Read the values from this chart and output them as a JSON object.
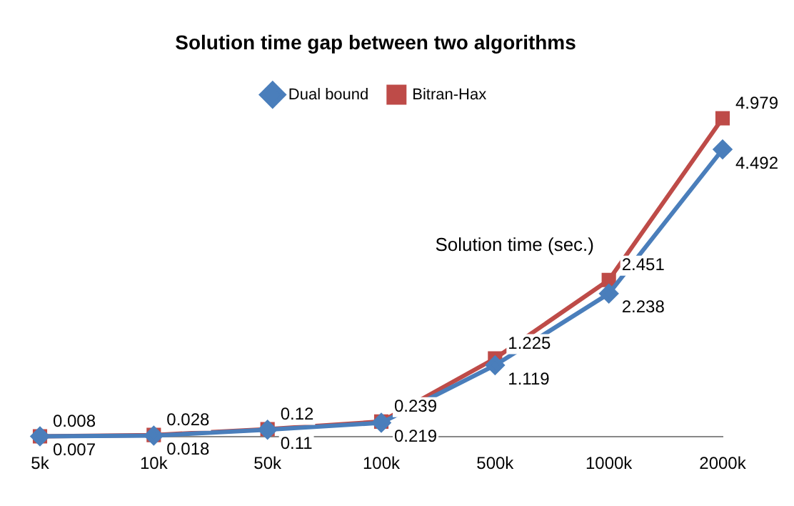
{
  "chart_data": {
    "type": "line",
    "title": "Solution time gap between two algorithms",
    "categories": [
      "5k",
      "10k",
      "50k",
      "100k",
      "500k",
      "1000k",
      "2000k"
    ],
    "series": [
      {
        "name": "Dual bound",
        "color": "#4a7ebb",
        "marker": "diamond",
        "values": [
          0.007,
          0.018,
          0.11,
          0.219,
          1.119,
          2.238,
          4.492
        ]
      },
      {
        "name": "Bitran-Hax",
        "color": "#be4b48",
        "marker": "square",
        "values": [
          0.008,
          0.028,
          0.12,
          0.239,
          1.225,
          2.451,
          4.979
        ]
      }
    ],
    "tick_labels": "x",
    "grid": false,
    "legend": "top",
    "data_labels": true,
    "annotations": [
      "Solution time (sec.)"
    ]
  }
}
